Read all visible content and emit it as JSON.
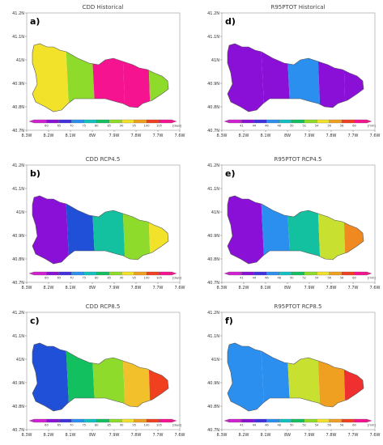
{
  "axes": {
    "lon_ticks": [
      "8.3W",
      "8.2W",
      "8.1W",
      "8W",
      "7.9W",
      "7.8W",
      "7.7W",
      "7.6W"
    ],
    "lat_ticks": [
      "41.2N",
      "41.1N",
      "41N",
      "40.9N",
      "40.8N",
      "40.7N"
    ]
  },
  "panels": [
    {
      "id": "a",
      "label": "a)",
      "title": "CDD Historical",
      "colorbar": {
        "ticks": [
          "60",
          "65",
          "70",
          "75",
          "80",
          "85",
          "90",
          "95",
          "100",
          "105"
        ],
        "unit": "[days]"
      },
      "colors": [
        "#f2e22a",
        "#8fdb2b",
        "#f5138f",
        "#f5138f",
        "#8fdb2b"
      ]
    },
    {
      "id": "d",
      "label": "d)",
      "title": "R95PTOT Historical",
      "colorbar": {
        "ticks": [
          "41",
          "44",
          "46",
          "48",
          "50",
          "52",
          "54",
          "56",
          "58",
          "60"
        ],
        "unit": "[mm]"
      },
      "colors": [
        "#8a10d8",
        "#8a10d8",
        "#2b8ff0",
        "#8a10d8",
        "#8a10d8"
      ]
    },
    {
      "id": "b",
      "label": "b)",
      "title": "CDD RCP4.5",
      "colorbar": {
        "ticks": [
          "60",
          "65",
          "70",
          "75",
          "80",
          "85",
          "90",
          "95",
          "100",
          "105"
        ],
        "unit": "[days]"
      },
      "colors": [
        "#8a10d8",
        "#2050d8",
        "#13c0a0",
        "#8fdb2b",
        "#f2e22a"
      ]
    },
    {
      "id": "e",
      "label": "e)",
      "title": "R95PTOT RCP4.5",
      "colorbar": {
        "ticks": [
          "41",
          "44",
          "46",
          "48",
          "50",
          "52",
          "54",
          "56",
          "58",
          "60"
        ],
        "unit": "[mm]"
      },
      "colors": [
        "#8a10d8",
        "#2b8ff0",
        "#13c0a0",
        "#c8e030",
        "#f08a20"
      ]
    },
    {
      "id": "c",
      "label": "c)",
      "title": "CDD RCP8.5",
      "colorbar": {
        "ticks": [
          "60",
          "65",
          "70",
          "75",
          "80",
          "85",
          "90",
          "95",
          "100",
          "105"
        ],
        "unit": "[days]"
      },
      "colors": [
        "#2050d8",
        "#13c060",
        "#8fdb2b",
        "#f2c02a",
        "#f04020"
      ]
    },
    {
      "id": "f",
      "label": "f)",
      "title": "R95PTOT RCP8.5",
      "colorbar": {
        "ticks": [
          "41",
          "44",
          "46",
          "48",
          "50",
          "52",
          "54",
          "56",
          "58",
          "60"
        ],
        "unit": "[mm]"
      },
      "colors": [
        "#2b8ff0",
        "#2b8ff0",
        "#c8e030",
        "#f0a020",
        "#f03030"
      ]
    }
  ],
  "colorbar_palette": [
    "#d020d0",
    "#8a10d8",
    "#4030e0",
    "#2b8ff0",
    "#13c0c0",
    "#13c060",
    "#8fdb2b",
    "#f2e22a",
    "#f0a020",
    "#f04020",
    "#f5138f"
  ]
}
